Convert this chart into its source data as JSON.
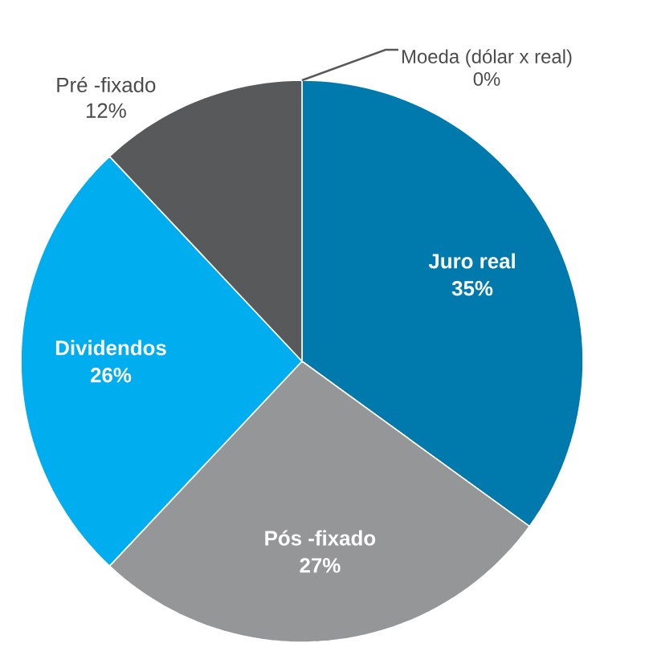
{
  "chart_data": {
    "type": "pie",
    "categories": [
      "Juro real",
      "Pós -fixado",
      "Dividendos",
      "Pré -fixado",
      "Moeda (dólar x real)"
    ],
    "values": [
      35,
      27,
      26,
      12,
      0
    ],
    "colors": [
      "#007aad",
      "#959698",
      "#00adee",
      "#58595b",
      "#595959"
    ],
    "value_labels": [
      "35%",
      "27%",
      "26%",
      "12%",
      "0%"
    ]
  }
}
